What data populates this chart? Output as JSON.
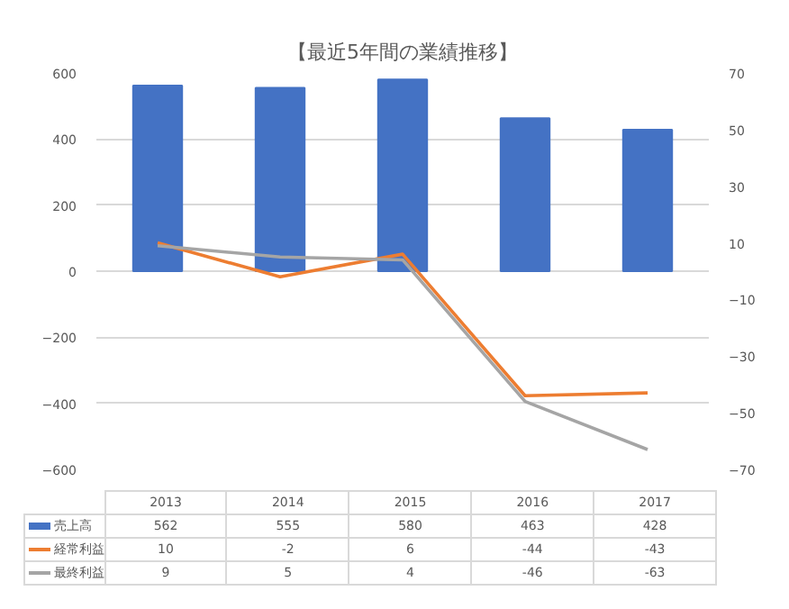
{
  "chart_data": {
    "type": "bar",
    "title": "【最近5年間の業績推移】",
    "categories": [
      "2013",
      "2014",
      "2015",
      "2016",
      "2017"
    ],
    "series": [
      {
        "name": "売上高",
        "color": "#4472c4",
        "values": [
          562,
          555,
          580,
          463,
          428
        ]
      },
      {
        "name": "経常利益",
        "type": "line",
        "axis": "y2",
        "color": "#ed7d31",
        "values": [
          10,
          -2,
          6,
          -44,
          -43
        ]
      },
      {
        "name": "最終利益",
        "type": "line",
        "axis": "y2",
        "color": "#a5a5a5",
        "values": [
          9,
          5,
          4,
          -46,
          -63
        ]
      }
    ],
    "ylim": [
      -600,
      600
    ],
    "yticks": [
      -600,
      -400,
      -200,
      0,
      200,
      400,
      600
    ],
    "y2lim": [
      -70,
      70
    ],
    "y2ticks": [
      -70,
      -50,
      -30,
      -10,
      10,
      30,
      50,
      70
    ],
    "grid": "y",
    "legend": "bottom",
    "data_labels": true
  }
}
